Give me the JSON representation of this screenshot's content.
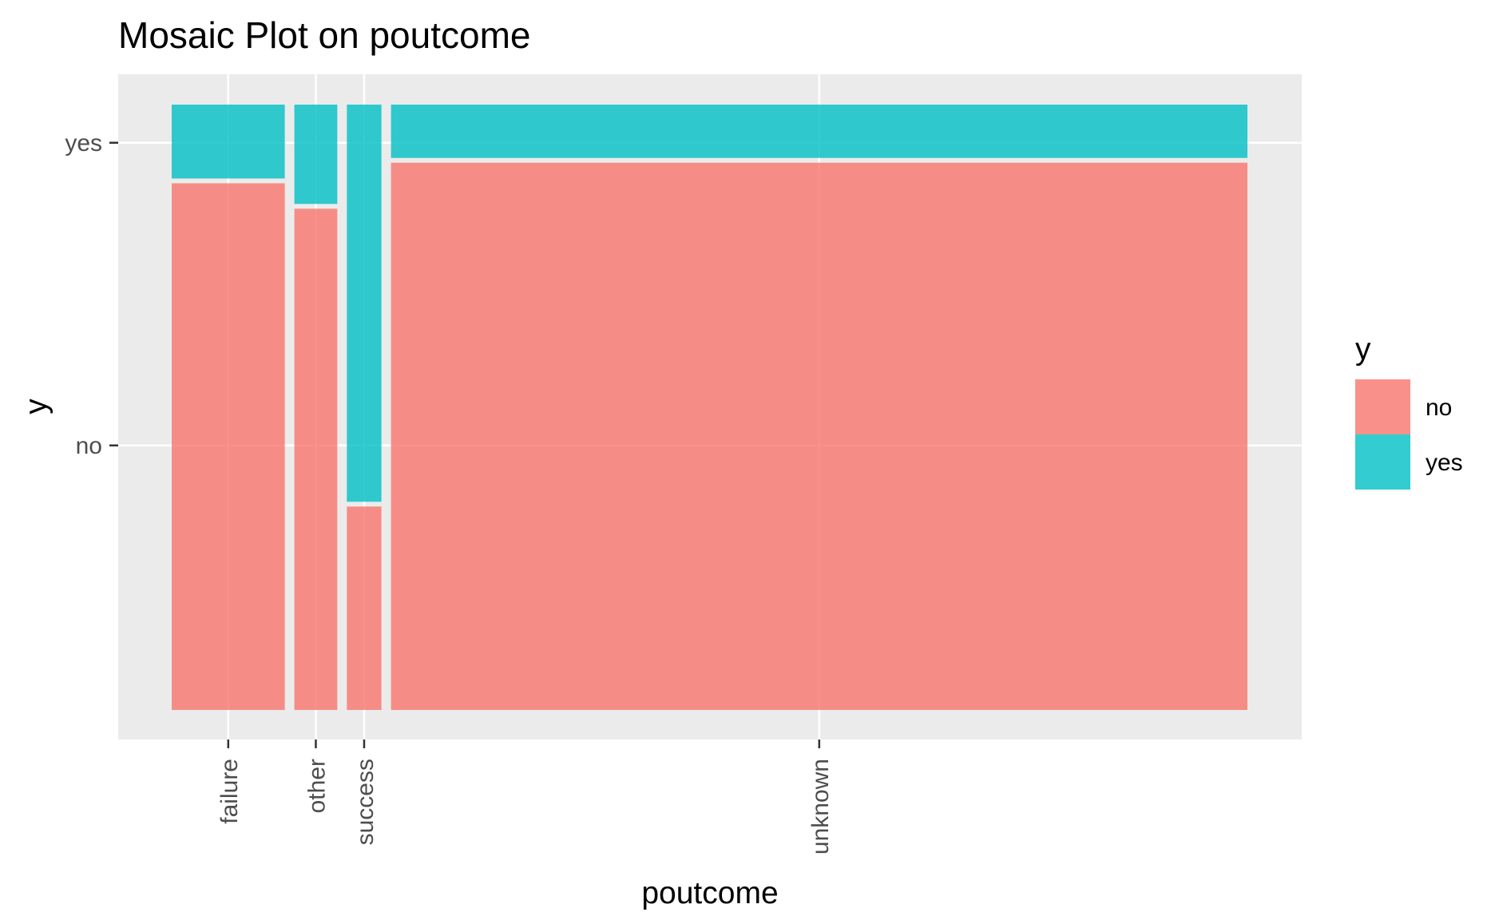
{
  "chart_data": {
    "type": "mosaic",
    "title": "Mosaic Plot on poutcome",
    "xlabel": "poutcome",
    "ylabel": "y",
    "categories": [
      "failure",
      "other",
      "success",
      "unknown"
    ],
    "category_proportion": [
      0.108,
      0.041,
      0.033,
      0.818
    ],
    "series": [
      {
        "name": "no",
        "color": "#F8766D",
        "values": [
          0.874,
          0.832,
          0.34,
          0.908
        ]
      },
      {
        "name": "yes",
        "color": "#00BFC4",
        "values": [
          0.126,
          0.168,
          0.66,
          0.092
        ]
      }
    ],
    "y_ticks": [
      "no",
      "yes"
    ],
    "legend": {
      "title": "y",
      "position": "right",
      "items": [
        "no",
        "yes"
      ]
    },
    "grid": true,
    "panel_background": "#EBEBEB"
  }
}
